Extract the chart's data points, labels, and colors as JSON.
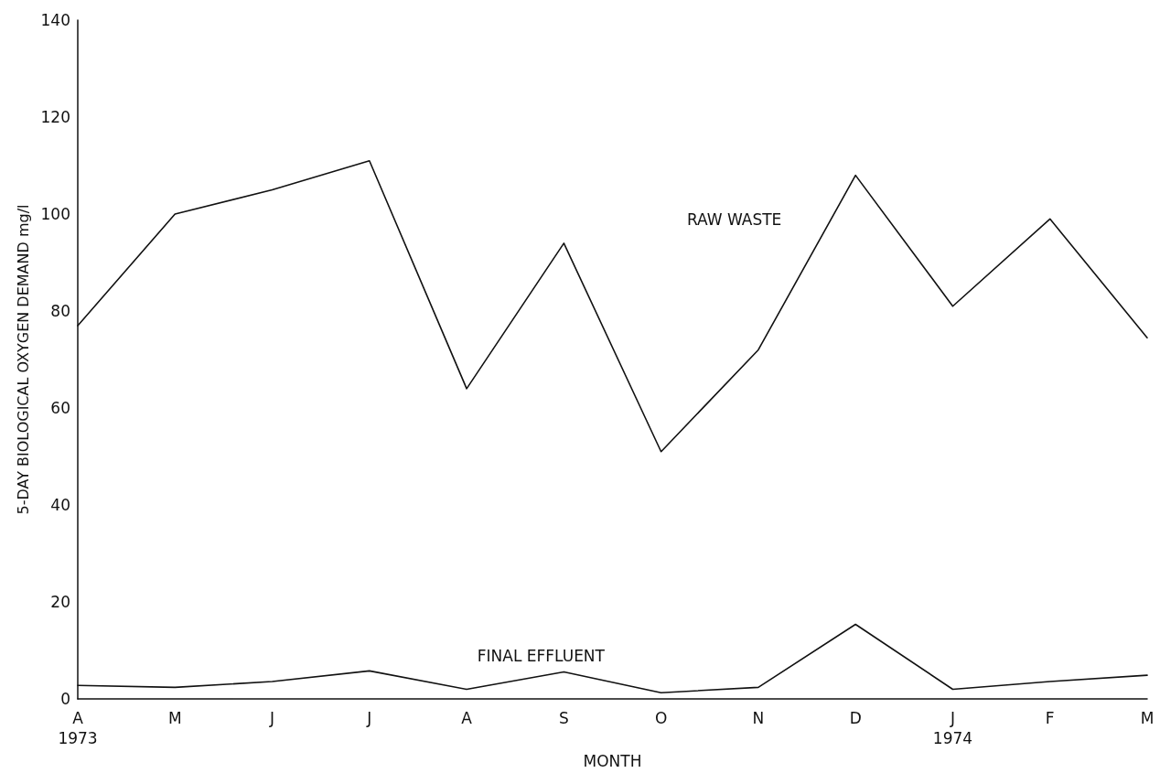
{
  "chart_data": {
    "type": "line",
    "xlabel": "MONTH",
    "ylabel": "5-DAY BIOLOGICAL OXYGEN DEMAND mg/l",
    "categories": [
      "A\n1973",
      "M",
      "J",
      "J",
      "A",
      "S",
      "O",
      "N",
      "D",
      "J\n1974",
      "F",
      "M"
    ],
    "series": [
      {
        "name": "RAW WASTE",
        "color": "#111111",
        "values": [
          77,
          100,
          105,
          111,
          64,
          94,
          51,
          72,
          108,
          81,
          99,
          74.5
        ]
      },
      {
        "name": "FINAL EFFLUENT",
        "color": "#111111",
        "values": [
          2.8,
          2.4,
          3.6,
          5.8,
          2,
          5.6,
          1.3,
          2.4,
          15.4,
          2,
          3.6,
          4.9
        ]
      }
    ],
    "ylim": [
      0,
      140
    ],
    "yticks": [
      0,
      20,
      40,
      60,
      80,
      100,
      120,
      140
    ],
    "grid": false,
    "legend": false,
    "marker": "none",
    "line_style": "solid"
  }
}
